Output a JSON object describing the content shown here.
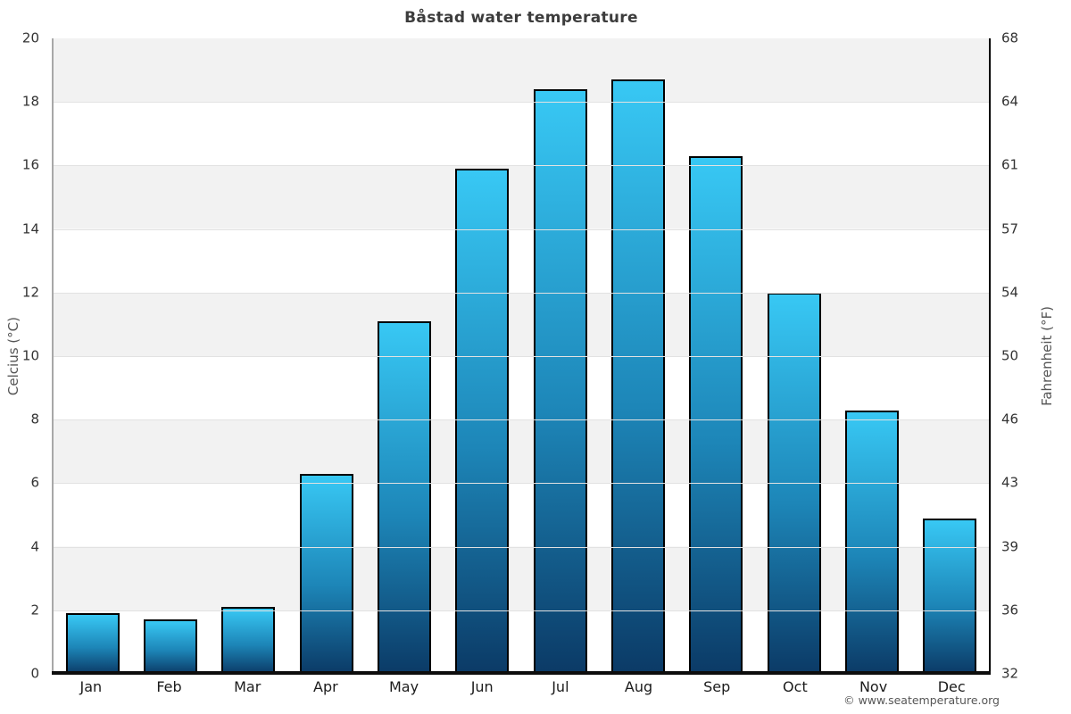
{
  "title": "Båstad water temperature",
  "footer": {
    "credit": "© www.seatemperature.org"
  },
  "axes": {
    "left": {
      "label": "Celcius (°C)",
      "ticks": [
        "20",
        "18",
        "16",
        "14",
        "12",
        "10",
        "8",
        "6",
        "4",
        "2",
        "0"
      ]
    },
    "right": {
      "label": "Fahrenheit (°F)",
      "ticks": [
        "68",
        "64",
        "61",
        "57",
        "54",
        "50",
        "46",
        "43",
        "39",
        "36",
        "32"
      ]
    }
  },
  "colors": {
    "bar_top": "#38c8f4",
    "bar_mid": "#1d86b8",
    "bar_bottom": "#0b3a66",
    "bar_border": "#000000",
    "band_gray": "#f2f2f2",
    "band_white": "#ffffff",
    "gridline": "#e2e2e2",
    "title_color": "#3c3c3c",
    "baseline": "#0d0d0d"
  },
  "chart_data": {
    "type": "bar",
    "title": "Båstad water temperature",
    "categories": [
      "Jan",
      "Feb",
      "Mar",
      "Apr",
      "May",
      "Jun",
      "Jul",
      "Aug",
      "Sep",
      "Oct",
      "Nov",
      "Dec"
    ],
    "values": [
      1.9,
      1.7,
      2.1,
      6.3,
      11.1,
      15.9,
      18.4,
      18.7,
      16.3,
      12.0,
      8.3,
      4.9
    ],
    "xlabel": "",
    "ylabel_left": "Celcius (°C)",
    "ylabel_right": "Fahrenheit (°F)",
    "ylim": [
      0,
      20
    ],
    "yticks_celsius": [
      0,
      2,
      4,
      6,
      8,
      10,
      12,
      14,
      16,
      18,
      20
    ],
    "yticks_fahrenheit": [
      32,
      36,
      39,
      43,
      46,
      50,
      54,
      57,
      61,
      64,
      68
    ],
    "grid": "horizontal-bands-alternating",
    "legend": "none",
    "bar_style": "vertical gradient light-blue top to dark-navy bottom, black outline"
  }
}
